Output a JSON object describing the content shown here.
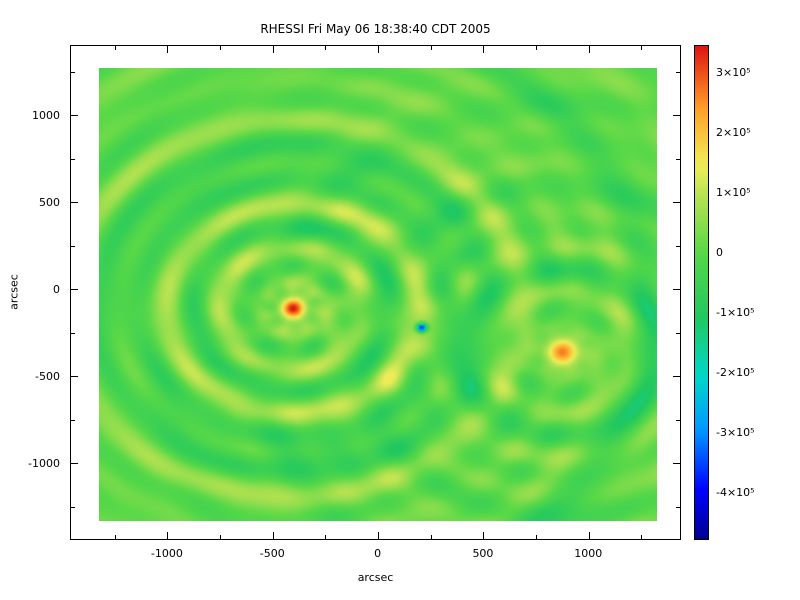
{
  "chart_data": {
    "type": "heatmap",
    "title": "RHESSI Fri May 06 18:38:40 CDT 2005",
    "xlabel": "arcsec",
    "ylabel": "arcsec",
    "grid": false,
    "xlim": [
      -1460,
      1440
    ],
    "ylim": [
      -1445,
      1400
    ],
    "x_tick_values": [
      -1000,
      -500,
      0,
      500,
      1000
    ],
    "x_tick_labels": [
      "-1000",
      "-500",
      "0",
      "500",
      "1000"
    ],
    "y_tick_values": [
      -1000,
      -500,
      0,
      500,
      1000
    ],
    "y_tick_labels": [
      "-1000",
      "-500",
      "0",
      "500",
      "1000"
    ],
    "image_extent": {
      "x": [
        -1320,
        1325
      ],
      "y": [
        -1335,
        1265
      ]
    },
    "value_range": [
      -480000,
      345000
    ],
    "background_color": "#ffffff",
    "axis_color": "#000000",
    "colormap": [
      [
        0.0,
        "#000090"
      ],
      [
        0.1,
        "#0000FF"
      ],
      [
        0.22,
        "#0098FF"
      ],
      [
        0.33,
        "#00D8C8"
      ],
      [
        0.45,
        "#20C860"
      ],
      [
        0.582,
        "#58D848"
      ],
      [
        0.68,
        "#AAE050"
      ],
      [
        0.76,
        "#F0EE58"
      ],
      [
        0.87,
        "#FFA228"
      ],
      [
        1.0,
        "#DD1510"
      ]
    ],
    "sources": [
      {
        "name": "main-source",
        "x": -400,
        "y": -115,
        "amp": 335000,
        "sigma": 42,
        "rings": [
          {
            "lambda": 240,
            "amp": 0.3,
            "decay": 1000,
            "lobes": 7,
            "wobble": 0.3,
            "twist": 130
          },
          {
            "lambda": 430,
            "amp": 0.16,
            "decay": 1800,
            "lobes": 3,
            "wobble": 0.35,
            "twist": 210
          },
          {
            "lambda": 840,
            "amp": 0.1,
            "decay": 2600,
            "lobes": 2,
            "wobble": 0.3,
            "twist": 320
          }
        ]
      },
      {
        "name": "negative-source",
        "x": 210,
        "y": -225,
        "amp": -480000,
        "sigma": 17,
        "rings": [
          {
            "lambda": 240,
            "amp": 0.05,
            "decay": 450,
            "lobes": 4,
            "wobble": 0.3,
            "twist": 150
          }
        ]
      },
      {
        "name": "secondary-source",
        "x": 875,
        "y": -365,
        "amp": 270000,
        "sigma": 55,
        "rings": [
          {
            "lambda": 240,
            "amp": 0.26,
            "decay": 800,
            "lobes": 6,
            "wobble": 0.35,
            "twist": 140
          },
          {
            "lambda": 470,
            "amp": 0.14,
            "decay": 1500,
            "lobes": 3,
            "wobble": 0.3,
            "twist": 230
          }
        ]
      }
    ],
    "colorbar": {
      "position": "right",
      "tick_values": [
        300000,
        200000,
        100000,
        0,
        -100000,
        -200000,
        -300000,
        -400000
      ],
      "tick_labels": [
        "3×10⁵",
        "2×10⁵",
        "1×10⁵",
        "0",
        "-1×10⁵",
        "-2×10⁵",
        "-3×10⁵",
        "-4×10⁵"
      ]
    }
  }
}
